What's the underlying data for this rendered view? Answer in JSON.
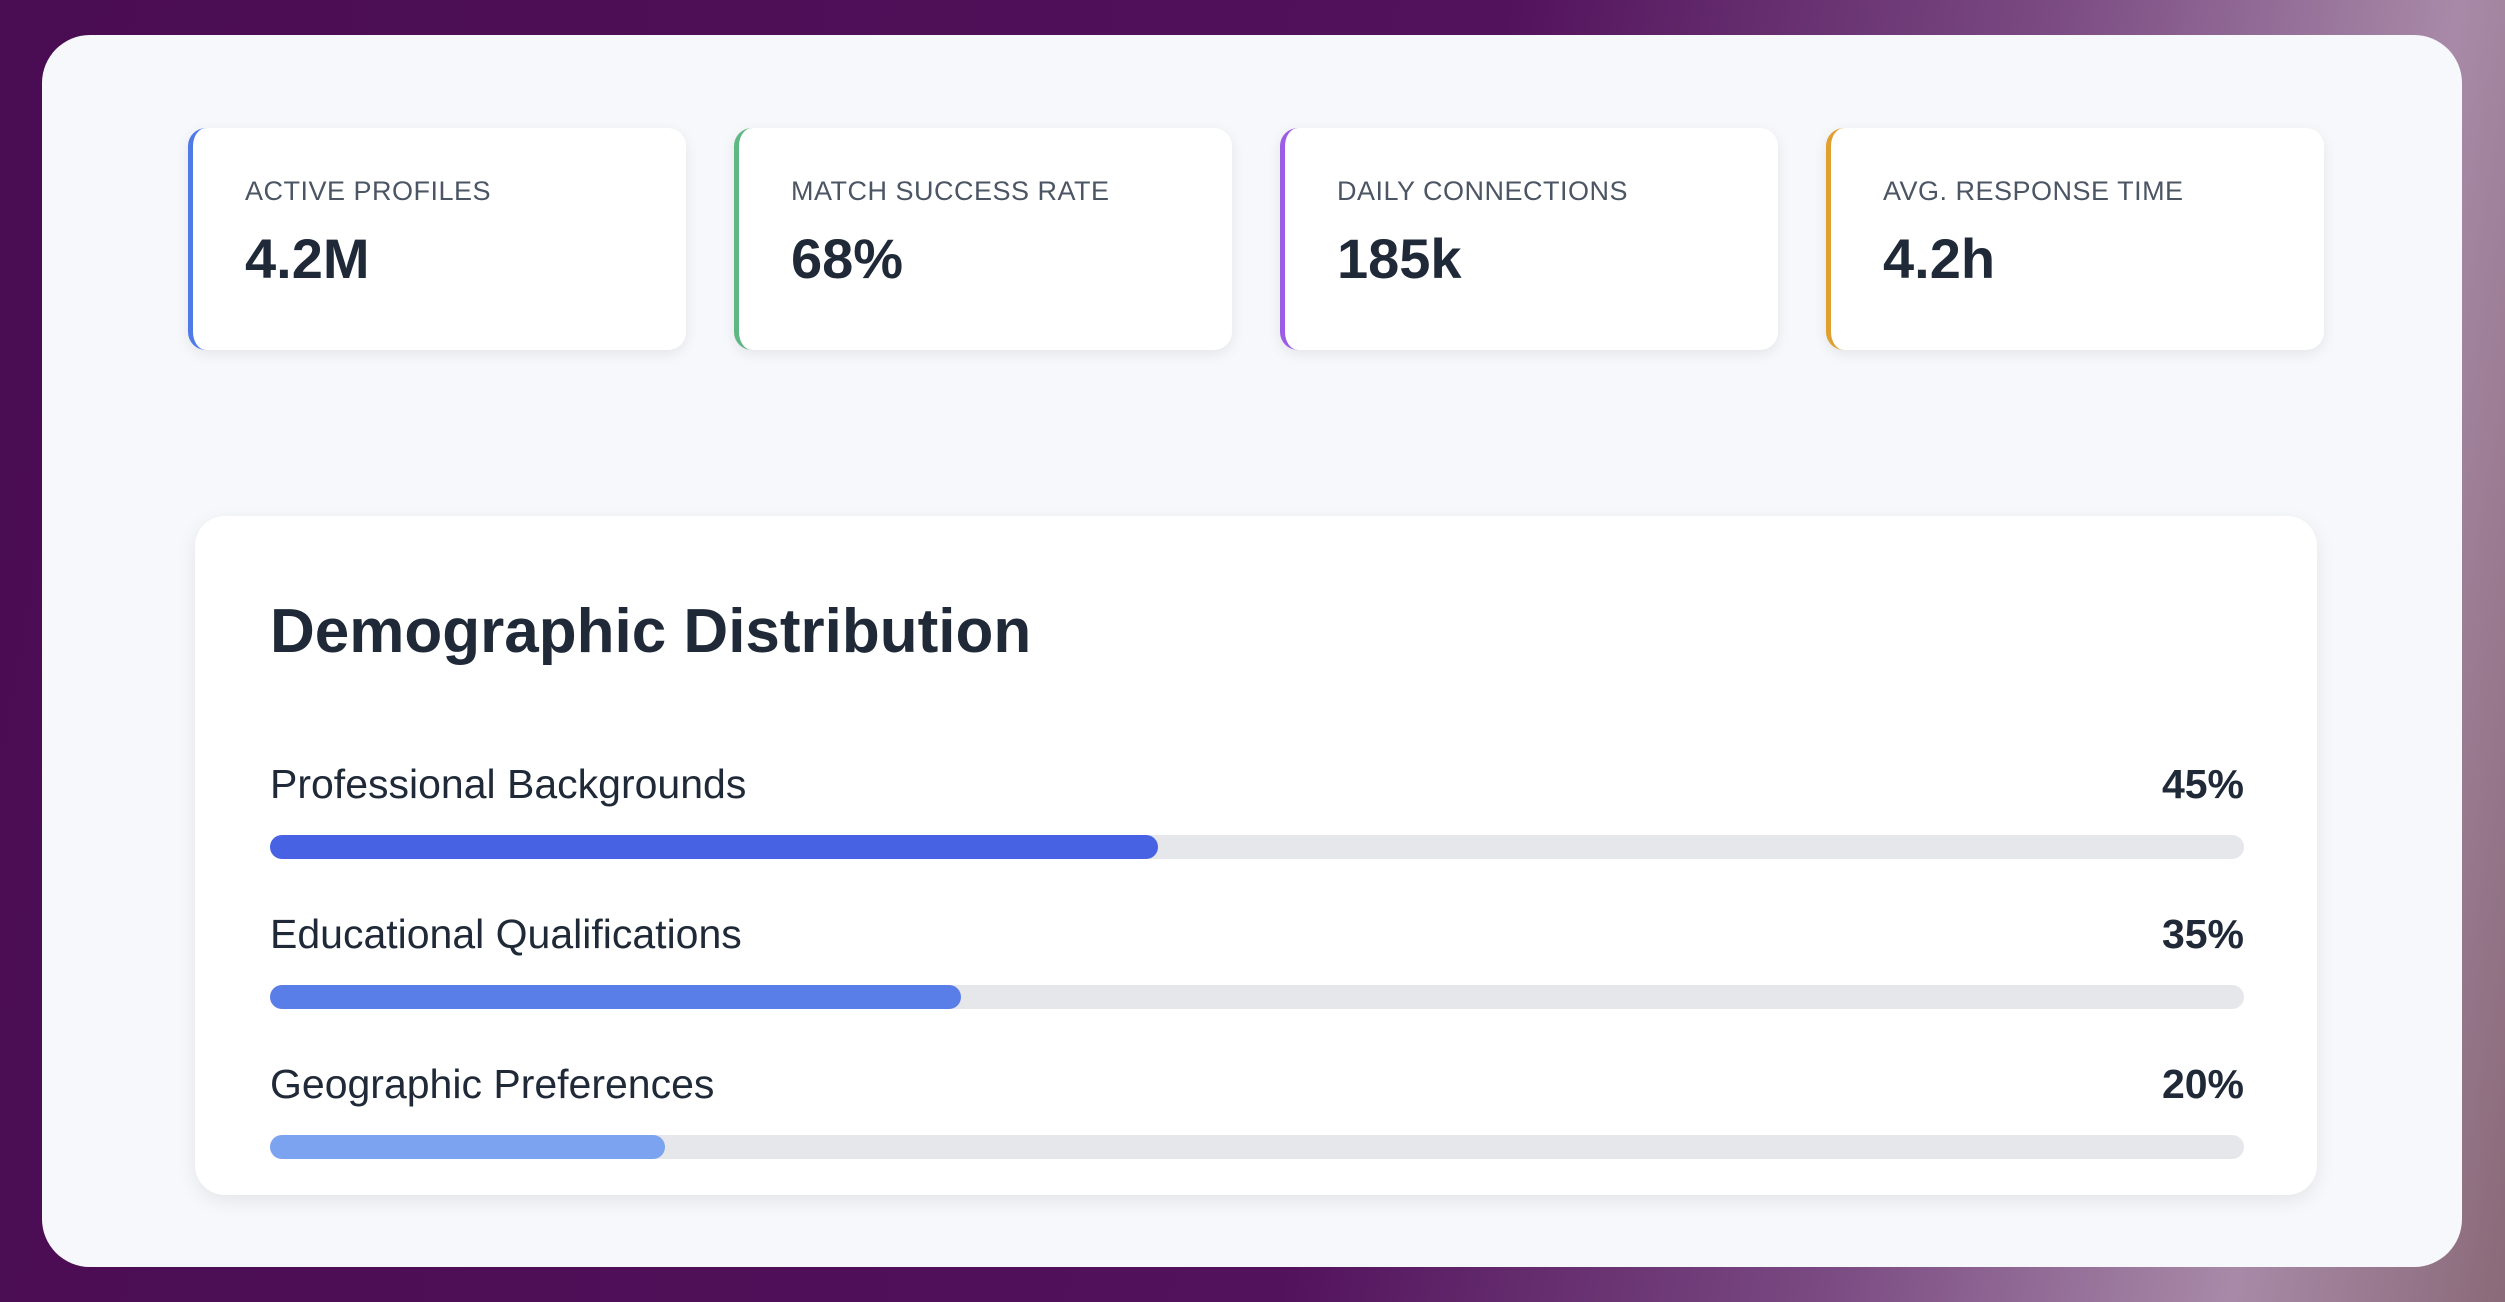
{
  "stats": [
    {
      "label": "ACTIVE PROFILES",
      "value": "4.2M",
      "color": "#4f7be8"
    },
    {
      "label": "MATCH SUCCESS RATE",
      "value": "68%",
      "color": "#5fb883"
    },
    {
      "label": "DAILY CONNECTIONS",
      "value": "185k",
      "color": "#9b5de5"
    },
    {
      "label": "AVG. RESPONSE TIME",
      "value": "4.2h",
      "color": "#e0a030"
    }
  ],
  "demographic_distribution": {
    "title": "Demographic Distribution",
    "labels": [
      "Professional Backgrounds",
      "Educational Qualifications",
      "Geographic Preferences"
    ],
    "values": [
      45,
      35,
      20
    ],
    "value_labels": [
      "45%",
      "35%",
      "20%"
    ],
    "colors": [
      "#4763e4",
      "#5a7ee8",
      "#7ba3f0"
    ],
    "xlim": [
      0,
      100
    ]
  }
}
